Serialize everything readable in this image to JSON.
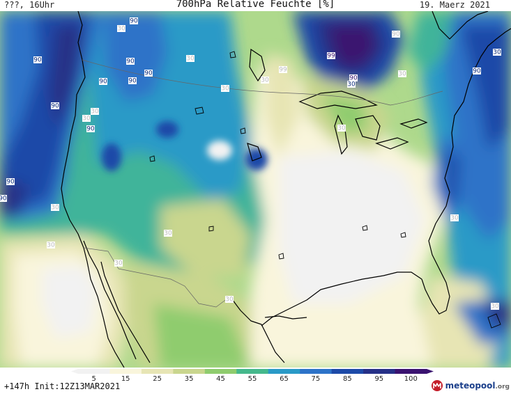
{
  "header": {
    "left": "???, 16Uhr",
    "title": "700hPa Relative Feuchte [%]",
    "right": "19. Maerz 2021"
  },
  "map": {
    "contour_labels": [
      {
        "text": "30"
      },
      {
        "text": "90"
      },
      {
        "text": "90"
      },
      {
        "text": "90"
      },
      {
        "text": "90"
      },
      {
        "text": "90"
      },
      {
        "text": "90"
      },
      {
        "text": "30"
      },
      {
        "text": "90"
      },
      {
        "text": "30"
      },
      {
        "text": "90"
      },
      {
        "text": "30"
      },
      {
        "text": "90"
      },
      {
        "text": "90"
      },
      {
        "text": "30"
      },
      {
        "text": "30"
      },
      {
        "text": "30"
      },
      {
        "text": "30"
      },
      {
        "text": "30"
      },
      {
        "text": "30"
      },
      {
        "text": "99"
      },
      {
        "text": "99"
      },
      {
        "text": "90"
      },
      {
        "text": "30"
      },
      {
        "text": "30"
      },
      {
        "text": "90"
      },
      {
        "text": "90"
      },
      {
        "text": "30"
      },
      {
        "text": "30"
      },
      {
        "text": "30"
      },
      {
        "text": "30"
      },
      {
        "text": "30"
      }
    ]
  },
  "legend": {
    "tick_labels": [
      "5",
      "15",
      "25",
      "35",
      "45",
      "55",
      "65",
      "75",
      "85",
      "95",
      "100"
    ],
    "colors": [
      "#f2f2f2",
      "#f9f5dc",
      "#e7e5b4",
      "#c9d68e",
      "#8fcc6e",
      "#45b88c",
      "#2a9ac7",
      "#2d73c8",
      "#1d4aa8",
      "#263087",
      "#3a1370"
    ]
  },
  "footer": {
    "run_info": "+147h  Init:12Z13MAR2021"
  },
  "logo": {
    "text": "meteopool",
    "tld": ".org"
  }
}
